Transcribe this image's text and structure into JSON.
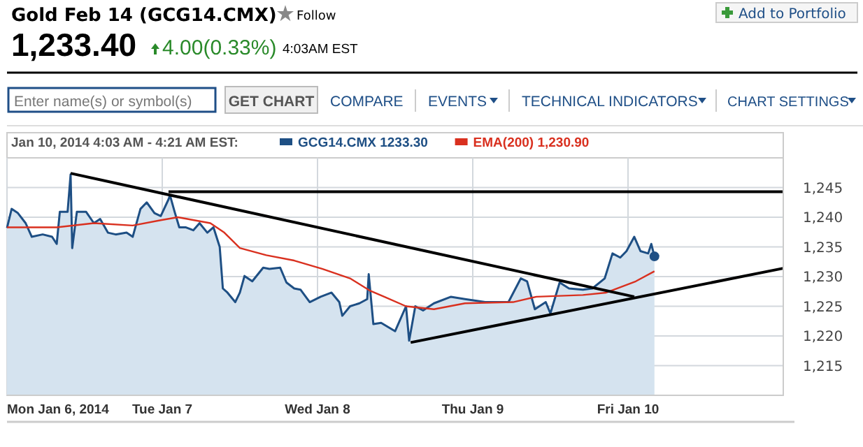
{
  "chart_data": {
    "type": "line",
    "title": "Gold Feb 14 (GCG14.CMX)",
    "subtitle": "Jan 10, 2014 4:03 AM - 4:21 AM EST:",
    "annotations": [
      "1,233.40",
      "4.00(0.33%)",
      "4:03AM EST",
      "Follow",
      "Add to Portfolio",
      "Enter name(s) or symbol(s)",
      "GET CHART",
      "COMPARE",
      "EVENTS",
      "TECHNICAL INDICATORS",
      "CHART SETTINGS"
    ],
    "xlim": [
      "2014-01-06",
      "2014-01-11"
    ],
    "xticks": [
      {
        "value": "2014-01-06",
        "label": "Mon Jan 6, 2014"
      },
      {
        "value": "2014-01-07",
        "label": "Tue Jan 7"
      },
      {
        "value": "2014-01-08",
        "label": "Wed Jan 8"
      },
      {
        "value": "2014-01-09",
        "label": "Thu Jan 9"
      },
      {
        "value": "2014-01-10",
        "label": "Fri Jan 10"
      }
    ],
    "ylim": [
      1210,
      1250
    ],
    "yticks": [
      {
        "value": 1215,
        "label": "1,215"
      },
      {
        "value": 1220,
        "label": "1,220"
      },
      {
        "value": 1225,
        "label": "1,225"
      },
      {
        "value": 1230,
        "label": "1,230"
      },
      {
        "value": 1235,
        "label": "1,235"
      },
      {
        "value": 1240,
        "label": "1,240"
      },
      {
        "value": 1245,
        "label": "1,245"
      }
    ],
    "grid": true,
    "legend": "top",
    "marker": "none",
    "line_style": "solid",
    "series": [
      {
        "name": "GCG14.CMX 1233.30",
        "type": "area",
        "color": "#1e4f84",
        "x": [
          "2014-01-06T00:00",
          "2014-01-06T00:43",
          "2014-01-06T01:41",
          "2014-01-06T02:53",
          "2014-01-06T03:50",
          "2014-01-06T05:31",
          "2014-01-06T06:58",
          "2014-01-06T07:41",
          "2014-01-06T08:10",
          "2014-01-06T09:22",
          "2014-01-06T09:50",
          "2014-01-06T10:05",
          "2014-01-06T10:48",
          "2014-01-06T12:14",
          "2014-01-06T13:26",
          "2014-01-06T14:24",
          "2014-01-06T15:36",
          "2014-01-06T16:48",
          "2014-01-06T18:29",
          "2014-01-06T19:26",
          "2014-01-06T20:38",
          "2014-01-06T21:36",
          "2014-01-06T22:48",
          "2014-01-06T23:46",
          "2014-01-07T00:58",
          "2014-01-07T01:12",
          "2014-01-07T01:55",
          "2014-01-07T02:38",
          "2014-01-07T03:36",
          "2014-01-07T04:48",
          "2014-01-07T05:46",
          "2014-01-07T06:58",
          "2014-01-07T07:55",
          "2014-01-07T08:53",
          "2014-01-07T09:22",
          "2014-01-07T10:05",
          "2014-01-07T11:17",
          "2014-01-07T12:00",
          "2014-01-07T12:43",
          "2014-01-07T13:55",
          "2014-01-07T15:36",
          "2014-01-07T16:34",
          "2014-01-07T18:14",
          "2014-01-07T19:12",
          "2014-01-07T20:24",
          "2014-01-07T21:22",
          "2014-01-07T22:48",
          "2014-01-08T00:29",
          "2014-01-08T02:10",
          "2014-01-08T03:22",
          "2014-01-08T03:50",
          "2014-01-08T05:02",
          "2014-01-08T06:29",
          "2014-01-08T07:41",
          "2014-01-08T07:55",
          "2014-01-08T08:38",
          "2014-01-08T09:50",
          "2014-01-08T12:00",
          "2014-01-08T13:41",
          "2014-01-08T14:10",
          "2014-01-08T15:07",
          "2014-01-08T16:19",
          "2014-01-08T18:00",
          "2014-01-08T20:38",
          "2014-01-08T22:48",
          "2014-01-09T01:55",
          "2014-01-09T05:31",
          "2014-01-09T07:26",
          "2014-01-09T08:24",
          "2014-01-09T09:36",
          "2014-01-09T11:17",
          "2014-01-09T12:00",
          "2014-01-09T13:26",
          "2014-01-09T14:53",
          "2014-01-09T17:02",
          "2014-01-09T18:29",
          "2014-01-09T20:24",
          "2014-01-09T21:36",
          "2014-01-09T22:48",
          "2014-01-09T23:46",
          "2014-01-10T00:58",
          "2014-01-10T01:55",
          "2014-01-10T03:07",
          "2014-01-10T03:36",
          "2014-01-10T04:05"
        ],
        "values": [
          1238.2,
          1241.4,
          1240.7,
          1239.0,
          1236.7,
          1237.1,
          1236.7,
          1235.5,
          1240.9,
          1240.9,
          1247.2,
          1234.8,
          1240.9,
          1240.9,
          1239.0,
          1239.7,
          1237.4,
          1237.1,
          1237.4,
          1236.7,
          1241.4,
          1242.5,
          1240.7,
          1240.2,
          1243.0,
          1243.7,
          1240.9,
          1238.3,
          1238.3,
          1237.8,
          1239.0,
          1237.4,
          1238.3,
          1235.0,
          1228.0,
          1227.3,
          1225.7,
          1227.3,
          1230.1,
          1229.2,
          1231.5,
          1231.3,
          1231.5,
          1229.0,
          1228.0,
          1227.8,
          1225.7,
          1226.6,
          1227.3,
          1225.7,
          1223.4,
          1225.0,
          1225.5,
          1226.2,
          1230.4,
          1222.0,
          1222.2,
          1220.8,
          1225.0,
          1219.2,
          1225.0,
          1224.3,
          1225.5,
          1226.6,
          1226.2,
          1225.7,
          1225.7,
          1229.7,
          1229.2,
          1224.5,
          1225.7,
          1223.8,
          1229.0,
          1228.0,
          1227.8,
          1228.0,
          1229.7,
          1233.9,
          1233.2,
          1234.3,
          1236.7,
          1234.3,
          1233.9,
          1235.5,
          1233.4
        ]
      },
      {
        "name": "EMA(200) 1,230.90",
        "color": "#d9301f",
        "x": [
          "2014-01-06T00:00",
          "2014-01-06T07:41",
          "2014-01-06T13:26",
          "2014-01-06T19:26",
          "2014-01-06T23:46",
          "2014-01-07T02:24",
          "2014-01-07T07:26",
          "2014-01-07T09:36",
          "2014-01-07T12:00",
          "2014-01-07T16:05",
          "2014-01-07T20:24",
          "2014-01-08T00:43",
          "2014-01-08T05:02",
          "2014-01-08T08:10",
          "2014-01-08T10:19",
          "2014-01-08T13:41",
          "2014-01-08T18:00",
          "2014-01-08T22:48",
          "2014-01-09T06:14",
          "2014-01-09T09:50",
          "2014-01-09T17:02",
          "2014-01-09T20:38",
          "2014-01-10T01:12",
          "2014-01-10T04:05"
        ],
        "values": [
          1238.3,
          1238.3,
          1239.0,
          1238.6,
          1239.5,
          1240.0,
          1239.0,
          1237.4,
          1234.8,
          1233.6,
          1232.7,
          1231.3,
          1229.7,
          1227.6,
          1226.6,
          1225.0,
          1224.5,
          1225.5,
          1225.7,
          1226.6,
          1226.9,
          1227.3,
          1229.2,
          1230.9
        ]
      },
      {
        "color": "#000000",
        "x": [
          "2014-01-06T09:50",
          "2014-01-10T00:58"
        ],
        "values": [
          1247.4,
          1226.6
        ]
      },
      {
        "color": "#000000",
        "x": [
          "2014-01-07T00:58",
          "2014-01-11T00:00"
        ],
        "values": [
          1244.3,
          1244.3
        ]
      },
      {
        "color": "#000000",
        "x": [
          "2014-01-08T14:24",
          "2014-01-11T00:00"
        ],
        "values": [
          1218.9,
          1231.4
        ]
      }
    ]
  }
}
